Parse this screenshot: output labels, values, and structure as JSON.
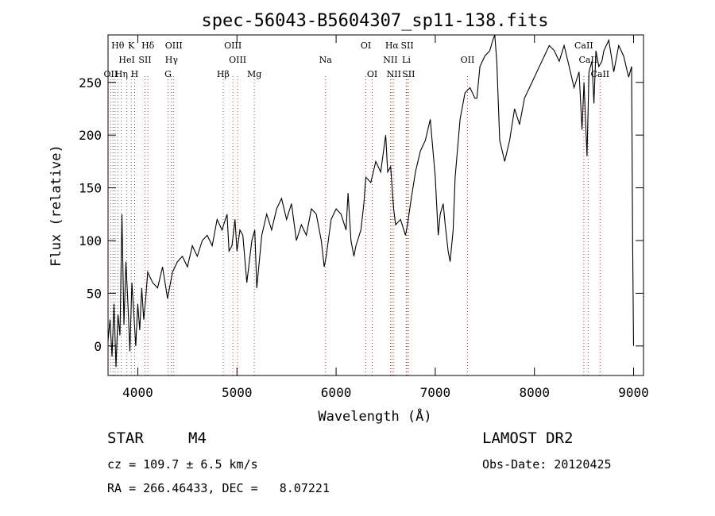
{
  "chart_data": {
    "type": "line",
    "title": "spec-56043-B5604307_sp11-138.fits",
    "xlabel": "Wavelength (Å)",
    "ylabel": "Flux (relative)",
    "xlim": [
      3700,
      9100
    ],
    "ylim": [
      -28,
      295
    ],
    "xticks": [
      4000,
      5000,
      6000,
      7000,
      8000,
      9000
    ],
    "yticks": [
      0,
      50,
      100,
      150,
      200,
      250
    ],
    "grid": false,
    "series": [
      {
        "x": [
          3700,
          3720,
          3740,
          3760,
          3780,
          3800,
          3820,
          3840,
          3860,
          3880,
          3900,
          3920,
          3940,
          3960,
          3980,
          4000,
          4020,
          4040,
          4060,
          4080,
          4100,
          4150,
          4200,
          4250,
          4300,
          4350,
          4400,
          4450,
          4500,
          4550,
          4600,
          4650,
          4700,
          4750,
          4800,
          4850,
          4900,
          4920,
          4950,
          4980,
          5000,
          5030,
          5060,
          5100,
          5150,
          5180,
          5200,
          5250,
          5300,
          5350,
          5400,
          5450,
          5500,
          5550,
          5600,
          5650,
          5700,
          5750,
          5800,
          5850,
          5880,
          5900,
          5950,
          6000,
          6050,
          6100,
          6120,
          6150,
          6180,
          6200,
          6250,
          6280,
          6300,
          6350,
          6400,
          6450,
          6500,
          6520,
          6550,
          6580,
          6600,
          6650,
          6700,
          6720,
          6750,
          6800,
          6850,
          6900,
          6950,
          7000,
          7030,
          7050,
          7080,
          7100,
          7130,
          7150,
          7180,
          7200,
          7250,
          7300,
          7350,
          7400,
          7420,
          7450,
          7500,
          7550,
          7580,
          7600,
          7620,
          7650,
          7700,
          7750,
          7800,
          7850,
          7900,
          7950,
          8000,
          8050,
          8100,
          8150,
          8200,
          8250,
          8300,
          8350,
          8400,
          8450,
          8480,
          8500,
          8530,
          8550,
          8580,
          8600,
          8620,
          8650,
          8680,
          8700,
          8750,
          8800,
          8850,
          8900,
          8950,
          8980,
          8990,
          9000
        ],
        "y": [
          5,
          25,
          -10,
          40,
          -20,
          30,
          10,
          125,
          20,
          80,
          40,
          -5,
          60,
          30,
          0,
          40,
          15,
          55,
          25,
          45,
          70,
          60,
          55,
          75,
          45,
          70,
          80,
          85,
          75,
          95,
          85,
          100,
          105,
          95,
          120,
          110,
          125,
          90,
          95,
          120,
          90,
          110,
          105,
          60,
          100,
          110,
          55,
          105,
          125,
          110,
          130,
          140,
          120,
          135,
          100,
          115,
          105,
          130,
          125,
          100,
          75,
          85,
          120,
          130,
          125,
          110,
          145,
          100,
          85,
          95,
          110,
          135,
          160,
          155,
          175,
          165,
          200,
          165,
          170,
          130,
          115,
          120,
          105,
          115,
          135,
          165,
          185,
          195,
          215,
          160,
          105,
          125,
          135,
          115,
          90,
          80,
          110,
          160,
          215,
          240,
          245,
          235,
          235,
          265,
          275,
          280,
          290,
          295,
          270,
          195,
          175,
          195,
          225,
          210,
          235,
          245,
          255,
          265,
          275,
          285,
          280,
          270,
          285,
          265,
          245,
          260,
          205,
          250,
          180,
          260,
          270,
          230,
          280,
          265,
          270,
          280,
          290,
          260,
          285,
          275,
          255,
          265,
          100,
          0
        ]
      }
    ],
    "line_labels": [
      {
        "text": "Hθ",
        "wl": 3798,
        "row": 0,
        "color": "#000000"
      },
      {
        "text": "K",
        "wl": 3934,
        "row": 0,
        "color": "#000000"
      },
      {
        "text": "Hδ",
        "wl": 4102,
        "row": 0,
        "color": "#000000"
      },
      {
        "text": "OIII",
        "wl": 4363,
        "row": 0,
        "color": "#000000"
      },
      {
        "text": "OIII",
        "wl": 4959,
        "row": 0,
        "color": "#000000"
      },
      {
        "text": "OI",
        "wl": 6300,
        "row": 0,
        "color": "#000000"
      },
      {
        "text": "Hα",
        "wl": 6563,
        "row": 0,
        "color": "#000000"
      },
      {
        "text": "SII",
        "wl": 6717,
        "row": 0,
        "color": "#000000"
      },
      {
        "text": "CaII",
        "wl": 8498,
        "row": 0,
        "color": "#000000"
      },
      {
        "text": "HeI",
        "wl": 3889,
        "row": 1,
        "color": "#000000"
      },
      {
        "text": "SII",
        "wl": 4072,
        "row": 1,
        "color": "#000000"
      },
      {
        "text": "Hγ",
        "wl": 4340,
        "row": 1,
        "color": "#000000"
      },
      {
        "text": "OIII",
        "wl": 5007,
        "row": 1,
        "color": "#000000"
      },
      {
        "text": "Na",
        "wl": 5893,
        "row": 1,
        "color": "#000000"
      },
      {
        "text": "NII",
        "wl": 6548,
        "row": 1,
        "color": "#000000"
      },
      {
        "text": "Li",
        "wl": 6708,
        "row": 1,
        "color": "#000000"
      },
      {
        "text": "OII",
        "wl": 7325,
        "row": 1,
        "color": "#000000"
      },
      {
        "text": "CaII",
        "wl": 8542,
        "row": 1,
        "color": "#000000"
      },
      {
        "text": "OII",
        "wl": 3727,
        "row": 2,
        "color": "#000000"
      },
      {
        "text": "Hη",
        "wl": 3835,
        "row": 2,
        "color": "#000000"
      },
      {
        "text": "H",
        "wl": 3968,
        "row": 2,
        "color": "#000000"
      },
      {
        "text": "G",
        "wl": 4305,
        "row": 2,
        "color": "#000000"
      },
      {
        "text": "Hβ",
        "wl": 4861,
        "row": 2,
        "color": "#000000"
      },
      {
        "text": "Mg",
        "wl": 5175,
        "row": 2,
        "color": "#000000"
      },
      {
        "text": "OI",
        "wl": 6364,
        "row": 2,
        "color": "#000000"
      },
      {
        "text": "NII",
        "wl": 6583,
        "row": 2,
        "color": "#000000"
      },
      {
        "text": "SII",
        "wl": 6731,
        "row": 2,
        "color": "#000000"
      },
      {
        "text": "CaII",
        "wl": 8662,
        "row": 2,
        "color": "#000000"
      }
    ],
    "marker_lines": [
      {
        "wl": 3727,
        "color": "#c0392b"
      },
      {
        "wl": 3750,
        "color": "#555555"
      },
      {
        "wl": 3771,
        "color": "#555555"
      },
      {
        "wl": 3798,
        "color": "#555555"
      },
      {
        "wl": 3835,
        "color": "#555555"
      },
      {
        "wl": 3889,
        "color": "#555555"
      },
      {
        "wl": 3934,
        "color": "#555555"
      },
      {
        "wl": 3968,
        "color": "#555555"
      },
      {
        "wl": 4072,
        "color": "#c0392b"
      },
      {
        "wl": 4102,
        "color": "#555555"
      },
      {
        "wl": 4305,
        "color": "#555555"
      },
      {
        "wl": 4340,
        "color": "#555555"
      },
      {
        "wl": 4363,
        "color": "#c0392b"
      },
      {
        "wl": 4861,
        "color": "#555555"
      },
      {
        "wl": 4959,
        "color": "#c0392b"
      },
      {
        "wl": 5007,
        "color": "#c0392b"
      },
      {
        "wl": 5175,
        "color": "#c0392b"
      },
      {
        "wl": 5893,
        "color": "#c0392b"
      },
      {
        "wl": 6300,
        "color": "#c0392b"
      },
      {
        "wl": 6364,
        "color": "#c0392b"
      },
      {
        "wl": 6548,
        "color": "#c0392b"
      },
      {
        "wl": 6563,
        "color": "#555555"
      },
      {
        "wl": 6583,
        "color": "#c0392b"
      },
      {
        "wl": 6708,
        "color": "#555555"
      },
      {
        "wl": 6717,
        "color": "#c0392b"
      },
      {
        "wl": 6731,
        "color": "#c0392b"
      },
      {
        "wl": 7325,
        "color": "#c0392b"
      },
      {
        "wl": 8498,
        "color": "#c0392b"
      },
      {
        "wl": 8542,
        "color": "#c0392b"
      },
      {
        "wl": 8662,
        "color": "#c0392b"
      }
    ]
  },
  "info": {
    "class_label": "STAR",
    "subclass": "M4",
    "survey": "LAMOST DR2",
    "cz_line": "cz = 109.7 ± 6.5 km/s",
    "obs_date": "Obs-Date: 20120425",
    "coords_line": "RA = 266.46433, DEC =   8.07221"
  }
}
